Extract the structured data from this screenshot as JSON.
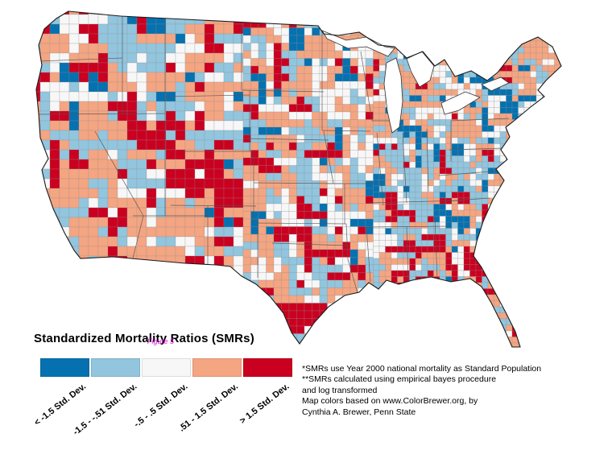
{
  "title": "Standardized Mortality Ratios (SMRs)",
  "watermark": "Figure 5",
  "legend": {
    "items": [
      {
        "label": "< -1.5 Std. Dev.",
        "color": "#0571b0"
      },
      {
        "label": "-1.5 - -.51 Std. Dev.",
        "color": "#92c5de"
      },
      {
        "label": "-.5 - .5 Std. Dev.",
        "color": "#f7f7f7"
      },
      {
        "label": ".51 - 1.5 Std. Dev.",
        "color": "#f4a582"
      },
      {
        "label": "> 1.5 Std. Dev.",
        "color": "#ca0020"
      }
    ]
  },
  "notes": [
    "*SMRs use Year 2000 national mortality as Standard Population",
    "**SMRs calculated using empirical bayes procedure",
    "and log transformed",
    "Map colors based on www.ColorBrewer.org, by",
    "Cynthia A. Brewer, Penn State"
  ],
  "map": {
    "type": "choropleth",
    "region": "Contiguous United States counties",
    "classes": 5,
    "base_weights": [
      0.08,
      0.26,
      0.2,
      0.33,
      0.13
    ]
  }
}
